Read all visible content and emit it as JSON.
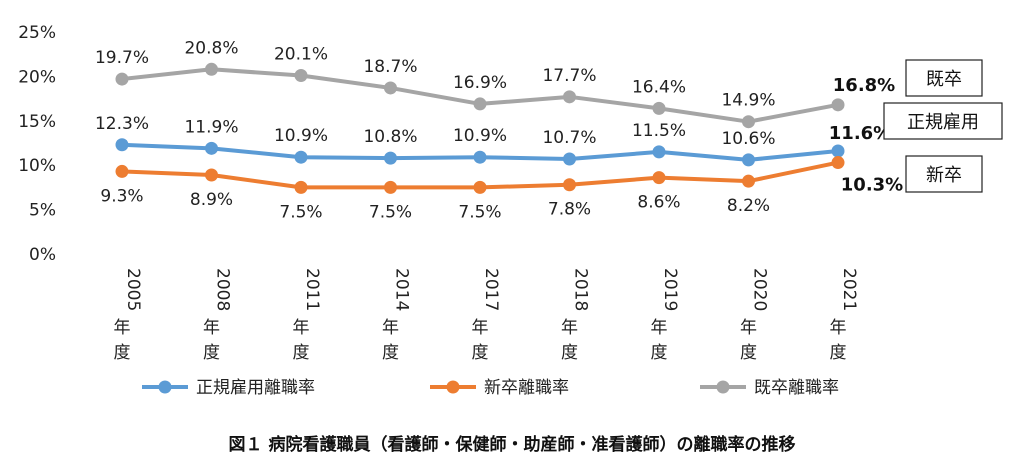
{
  "chart_data": {
    "type": "line",
    "caption": "図１ 病院看護職員（看護師・保健師・助産師・准看護師）の離職率の推移",
    "categories": [
      "2005年度",
      "2008年度",
      "2011年度",
      "2014年度",
      "2017年度",
      "2018年度",
      "2019年度",
      "2020年度",
      "2021年度"
    ],
    "y_ticks": [
      "0%",
      "5%",
      "10%",
      "15%",
      "20%",
      "25%"
    ],
    "ylim": [
      0,
      25
    ],
    "series": [
      {
        "key": "regular",
        "name": "正規雇用離職率",
        "tag": "正規雇用",
        "color": "#5b9bd5",
        "values": [
          12.3,
          11.9,
          10.9,
          10.8,
          10.9,
          10.7,
          11.5,
          10.6,
          11.6
        ],
        "labels": [
          "12.3%",
          "11.9%",
          "10.9%",
          "10.8%",
          "10.9%",
          "10.7%",
          "11.5%",
          "10.6%",
          "11.6%"
        ]
      },
      {
        "key": "newgrad",
        "name": "新卒離職率",
        "tag": "新卒",
        "color": "#ed7d31",
        "values": [
          9.3,
          8.9,
          7.5,
          7.5,
          7.5,
          7.8,
          8.6,
          8.2,
          10.3
        ],
        "labels": [
          "9.3%",
          "8.9%",
          "7.5%",
          "7.5%",
          "7.5%",
          "7.8%",
          "8.6%",
          "8.2%",
          "10.3%"
        ]
      },
      {
        "key": "experienced",
        "name": "既卒離職率",
        "tag": "既卒",
        "color": "#a5a5a5",
        "values": [
          19.7,
          20.8,
          20.1,
          18.7,
          16.9,
          17.7,
          16.4,
          14.9,
          16.8
        ],
        "labels": [
          "19.7%",
          "20.8%",
          "20.1%",
          "18.7%",
          "16.9%",
          "17.7%",
          "16.4%",
          "14.9%",
          "16.8%"
        ]
      }
    ]
  }
}
